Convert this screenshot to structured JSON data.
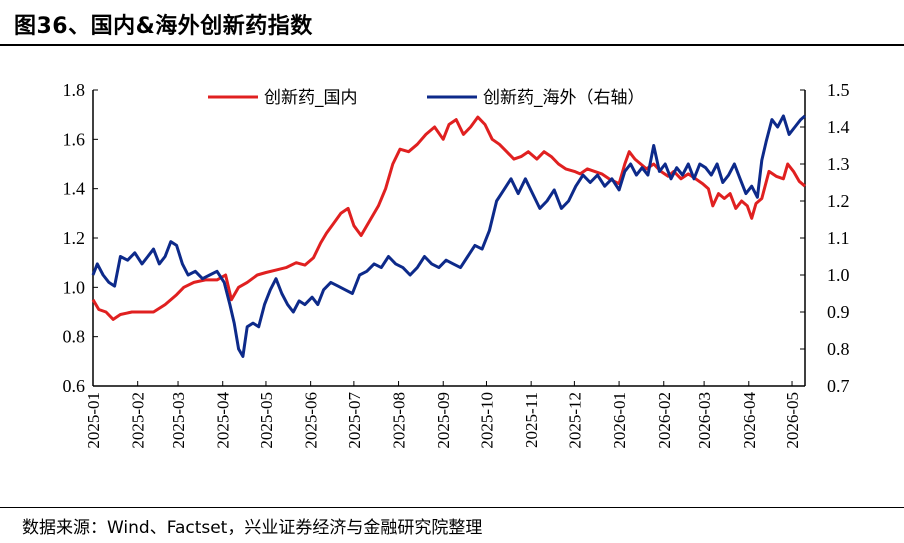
{
  "figure_title": "图36、国内&海外创新药指数",
  "source_text": "数据来源：Wind、Factset，兴业证券经济与金融研究院整理",
  "colors": {
    "domestic": "#e02020",
    "overseas": "#0d2a8a",
    "axis": "#000000"
  },
  "chart_data": {
    "type": "line",
    "title": "",
    "left_axis": {
      "ylim": [
        0.6,
        1.8
      ],
      "ticks": [
        "0.6",
        "0.8",
        "1.0",
        "1.2",
        "1.4",
        "1.6",
        "1.8"
      ]
    },
    "right_axis": {
      "ylim": [
        0.7,
        1.5
      ],
      "ticks": [
        "0.7",
        "0.8",
        "0.9",
        "1.0",
        "1.1",
        "1.2",
        "1.3",
        "1.4",
        "1.5"
      ]
    },
    "x_axis": {
      "start": "2025-01-01",
      "end": "2026-05-10",
      "ticks": [
        "2025-01",
        "2025-02",
        "2025-03",
        "2025-04",
        "2025-05",
        "2025-06",
        "2025-07",
        "2025-08",
        "2025-09",
        "2025-10",
        "2025-11",
        "2025-12",
        "2026-01",
        "2026-02",
        "2026-03",
        "2026-04",
        "2026-05"
      ]
    },
    "grid": false,
    "legend": "top",
    "series": [
      {
        "name": "创新药_国内",
        "axis": "left",
        "color": "#e02020",
        "points": [
          [
            "2025-01-01",
            0.95
          ],
          [
            "2025-01-05",
            0.91
          ],
          [
            "2025-01-10",
            0.9
          ],
          [
            "2025-01-15",
            0.87
          ],
          [
            "2025-01-20",
            0.89
          ],
          [
            "2025-01-28",
            0.9
          ],
          [
            "2025-02-05",
            0.9
          ],
          [
            "2025-02-12",
            0.9
          ],
          [
            "2025-02-20",
            0.93
          ],
          [
            "2025-02-28",
            0.97
          ],
          [
            "2025-03-05",
            1.0
          ],
          [
            "2025-03-12",
            1.02
          ],
          [
            "2025-03-20",
            1.03
          ],
          [
            "2025-03-28",
            1.03
          ],
          [
            "2025-04-03",
            1.05
          ],
          [
            "2025-04-07",
            0.95
          ],
          [
            "2025-04-12",
            1.0
          ],
          [
            "2025-04-18",
            1.02
          ],
          [
            "2025-04-25",
            1.05
          ],
          [
            "2025-05-01",
            1.06
          ],
          [
            "2025-05-08",
            1.07
          ],
          [
            "2025-05-15",
            1.08
          ],
          [
            "2025-05-22",
            1.1
          ],
          [
            "2025-05-28",
            1.09
          ],
          [
            "2025-06-03",
            1.12
          ],
          [
            "2025-06-08",
            1.18
          ],
          [
            "2025-06-12",
            1.22
          ],
          [
            "2025-06-17",
            1.26
          ],
          [
            "2025-06-22",
            1.3
          ],
          [
            "2025-06-27",
            1.32
          ],
          [
            "2025-07-01",
            1.25
          ],
          [
            "2025-07-06",
            1.21
          ],
          [
            "2025-07-12",
            1.27
          ],
          [
            "2025-07-18",
            1.33
          ],
          [
            "2025-07-23",
            1.4
          ],
          [
            "2025-07-28",
            1.5
          ],
          [
            "2025-08-02",
            1.56
          ],
          [
            "2025-08-08",
            1.55
          ],
          [
            "2025-08-14",
            1.58
          ],
          [
            "2025-08-20",
            1.62
          ],
          [
            "2025-08-26",
            1.65
          ],
          [
            "2025-09-01",
            1.6
          ],
          [
            "2025-09-05",
            1.66
          ],
          [
            "2025-09-10",
            1.68
          ],
          [
            "2025-09-15",
            1.62
          ],
          [
            "2025-09-20",
            1.65
          ],
          [
            "2025-09-25",
            1.69
          ],
          [
            "2025-09-30",
            1.66
          ],
          [
            "2025-10-05",
            1.6
          ],
          [
            "2025-10-10",
            1.58
          ],
          [
            "2025-10-15",
            1.55
          ],
          [
            "2025-10-20",
            1.52
          ],
          [
            "2025-10-25",
            1.53
          ],
          [
            "2025-10-30",
            1.55
          ],
          [
            "2025-11-05",
            1.52
          ],
          [
            "2025-11-10",
            1.55
          ],
          [
            "2025-11-15",
            1.53
          ],
          [
            "2025-11-20",
            1.5
          ],
          [
            "2025-11-25",
            1.48
          ],
          [
            "2025-12-01",
            1.47
          ],
          [
            "2025-12-05",
            1.46
          ],
          [
            "2025-12-10",
            1.48
          ],
          [
            "2025-12-15",
            1.47
          ],
          [
            "2025-12-20",
            1.46
          ],
          [
            "2025-12-25",
            1.44
          ],
          [
            "2026-01-01",
            1.42
          ],
          [
            "2026-01-05",
            1.5
          ],
          [
            "2026-01-08",
            1.55
          ],
          [
            "2026-01-12",
            1.52
          ],
          [
            "2026-01-16",
            1.5
          ],
          [
            "2026-01-20",
            1.48
          ],
          [
            "2026-01-25",
            1.5
          ],
          [
            "2026-01-30",
            1.47
          ],
          [
            "2026-02-04",
            1.45
          ],
          [
            "2026-02-08",
            1.47
          ],
          [
            "2026-02-13",
            1.44
          ],
          [
            "2026-02-18",
            1.46
          ],
          [
            "2026-02-23",
            1.44
          ],
          [
            "2026-02-28",
            1.42
          ],
          [
            "2026-03-04",
            1.4
          ],
          [
            "2026-03-07",
            1.33
          ],
          [
            "2026-03-11",
            1.38
          ],
          [
            "2026-03-15",
            1.36
          ],
          [
            "2026-03-19",
            1.38
          ],
          [
            "2026-03-23",
            1.32
          ],
          [
            "2026-03-27",
            1.35
          ],
          [
            "2026-03-31",
            1.33
          ],
          [
            "2026-04-03",
            1.28
          ],
          [
            "2026-04-06",
            1.34
          ],
          [
            "2026-04-10",
            1.36
          ],
          [
            "2026-04-15",
            1.47
          ],
          [
            "2026-04-20",
            1.45
          ],
          [
            "2026-04-25",
            1.44
          ],
          [
            "2026-04-28",
            1.5
          ],
          [
            "2026-05-02",
            1.47
          ],
          [
            "2026-05-06",
            1.43
          ],
          [
            "2026-05-10",
            1.41
          ]
        ]
      },
      {
        "name": "创新药_海外（右轴）",
        "axis": "right",
        "color": "#0d2a8a",
        "points": [
          [
            "2025-01-01",
            1.0
          ],
          [
            "2025-01-04",
            1.03
          ],
          [
            "2025-01-08",
            1.0
          ],
          [
            "2025-01-12",
            0.98
          ],
          [
            "2025-01-16",
            0.97
          ],
          [
            "2025-01-20",
            1.05
          ],
          [
            "2025-01-25",
            1.04
          ],
          [
            "2025-01-30",
            1.06
          ],
          [
            "2025-02-04",
            1.03
          ],
          [
            "2025-02-08",
            1.05
          ],
          [
            "2025-02-12",
            1.07
          ],
          [
            "2025-02-16",
            1.03
          ],
          [
            "2025-02-20",
            1.05
          ],
          [
            "2025-02-24",
            1.09
          ],
          [
            "2025-02-28",
            1.08
          ],
          [
            "2025-03-04",
            1.03
          ],
          [
            "2025-03-08",
            1.0
          ],
          [
            "2025-03-13",
            1.01
          ],
          [
            "2025-03-18",
            0.99
          ],
          [
            "2025-03-23",
            1.0
          ],
          [
            "2025-03-28",
            1.01
          ],
          [
            "2025-04-02",
            0.98
          ],
          [
            "2025-04-06",
            0.92
          ],
          [
            "2025-04-09",
            0.87
          ],
          [
            "2025-04-12",
            0.8
          ],
          [
            "2025-04-15",
            0.78
          ],
          [
            "2025-04-18",
            0.86
          ],
          [
            "2025-04-22",
            0.87
          ],
          [
            "2025-04-26",
            0.86
          ],
          [
            "2025-04-30",
            0.92
          ],
          [
            "2025-05-04",
            0.96
          ],
          [
            "2025-05-08",
            0.99
          ],
          [
            "2025-05-12",
            0.95
          ],
          [
            "2025-05-16",
            0.92
          ],
          [
            "2025-05-20",
            0.9
          ],
          [
            "2025-05-24",
            0.93
          ],
          [
            "2025-05-28",
            0.92
          ],
          [
            "2025-06-02",
            0.94
          ],
          [
            "2025-06-06",
            0.92
          ],
          [
            "2025-06-10",
            0.96
          ],
          [
            "2025-06-15",
            0.98
          ],
          [
            "2025-06-20",
            0.97
          ],
          [
            "2025-06-25",
            0.96
          ],
          [
            "2025-06-30",
            0.95
          ],
          [
            "2025-07-05",
            1.0
          ],
          [
            "2025-07-10",
            1.01
          ],
          [
            "2025-07-15",
            1.03
          ],
          [
            "2025-07-20",
            1.02
          ],
          [
            "2025-07-25",
            1.05
          ],
          [
            "2025-07-30",
            1.03
          ],
          [
            "2025-08-04",
            1.02
          ],
          [
            "2025-08-09",
            1.0
          ],
          [
            "2025-08-14",
            1.02
          ],
          [
            "2025-08-19",
            1.05
          ],
          [
            "2025-08-24",
            1.03
          ],
          [
            "2025-08-29",
            1.02
          ],
          [
            "2025-09-03",
            1.04
          ],
          [
            "2025-09-08",
            1.03
          ],
          [
            "2025-09-13",
            1.02
          ],
          [
            "2025-09-18",
            1.05
          ],
          [
            "2025-09-23",
            1.08
          ],
          [
            "2025-09-28",
            1.07
          ],
          [
            "2025-10-03",
            1.12
          ],
          [
            "2025-10-08",
            1.2
          ],
          [
            "2025-10-13",
            1.23
          ],
          [
            "2025-10-18",
            1.26
          ],
          [
            "2025-10-23",
            1.22
          ],
          [
            "2025-10-28",
            1.26
          ],
          [
            "2025-11-02",
            1.22
          ],
          [
            "2025-11-07",
            1.18
          ],
          [
            "2025-11-12",
            1.2
          ],
          [
            "2025-11-17",
            1.23
          ],
          [
            "2025-11-22",
            1.18
          ],
          [
            "2025-11-27",
            1.2
          ],
          [
            "2025-12-02",
            1.24
          ],
          [
            "2025-12-07",
            1.27
          ],
          [
            "2025-12-12",
            1.25
          ],
          [
            "2025-12-17",
            1.27
          ],
          [
            "2025-12-22",
            1.24
          ],
          [
            "2025-12-27",
            1.26
          ],
          [
            "2026-01-01",
            1.23
          ],
          [
            "2026-01-05",
            1.28
          ],
          [
            "2026-01-09",
            1.3
          ],
          [
            "2026-01-13",
            1.27
          ],
          [
            "2026-01-17",
            1.29
          ],
          [
            "2026-01-21",
            1.27
          ],
          [
            "2026-01-25",
            1.35
          ],
          [
            "2026-01-29",
            1.28
          ],
          [
            "2026-02-02",
            1.3
          ],
          [
            "2026-02-06",
            1.26
          ],
          [
            "2026-02-10",
            1.29
          ],
          [
            "2026-02-14",
            1.27
          ],
          [
            "2026-02-18",
            1.3
          ],
          [
            "2026-02-22",
            1.26
          ],
          [
            "2026-02-26",
            1.3
          ],
          [
            "2026-03-02",
            1.29
          ],
          [
            "2026-03-06",
            1.27
          ],
          [
            "2026-03-10",
            1.3
          ],
          [
            "2026-03-14",
            1.25
          ],
          [
            "2026-03-18",
            1.27
          ],
          [
            "2026-03-22",
            1.3
          ],
          [
            "2026-03-26",
            1.26
          ],
          [
            "2026-03-30",
            1.22
          ],
          [
            "2026-04-03",
            1.24
          ],
          [
            "2026-04-07",
            1.21
          ],
          [
            "2026-04-10",
            1.31
          ],
          [
            "2026-04-13",
            1.36
          ],
          [
            "2026-04-17",
            1.42
          ],
          [
            "2026-04-21",
            1.4
          ],
          [
            "2026-04-25",
            1.43
          ],
          [
            "2026-04-29",
            1.38
          ],
          [
            "2026-05-03",
            1.4
          ],
          [
            "2026-05-07",
            1.42
          ],
          [
            "2026-05-10",
            1.43
          ]
        ]
      }
    ]
  }
}
